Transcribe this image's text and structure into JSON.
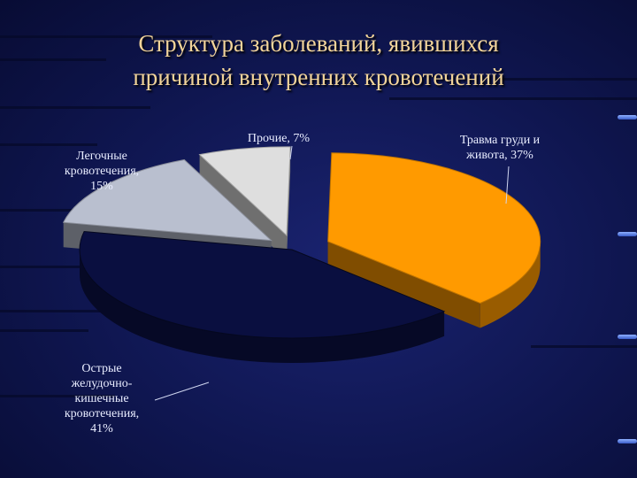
{
  "title_lines": [
    "Структура заболеваний, явившихся",
    "причиной внутренних кровотечений"
  ],
  "chart_data": {
    "type": "pie",
    "title": "Структура заболеваний, явившихся причиной внутренних кровотечений",
    "categories": [
      "Травма груди и живота",
      "Острые желудочно-кишечные кровотечения",
      "Легочные кровотечения",
      "Прочие"
    ],
    "values": [
      37,
      41,
      15,
      7
    ],
    "unit": "%",
    "colors": [
      "#ff9a00",
      "#0a0f40",
      "#b9bfcf",
      "#dedede"
    ],
    "exploded": true,
    "perspective": "3d",
    "labels": [
      {
        "lines": [
          "Травма груди и",
          "живота, 37%"
        ]
      },
      {
        "lines": [
          "Острые",
          "желудочно-",
          "кишечные",
          "кровотечения,",
          "41%"
        ]
      },
      {
        "lines": [
          "Легочные",
          "кровотечения,",
          "15%"
        ]
      },
      {
        "lines": [
          "Прочие, 7%"
        ]
      }
    ]
  }
}
